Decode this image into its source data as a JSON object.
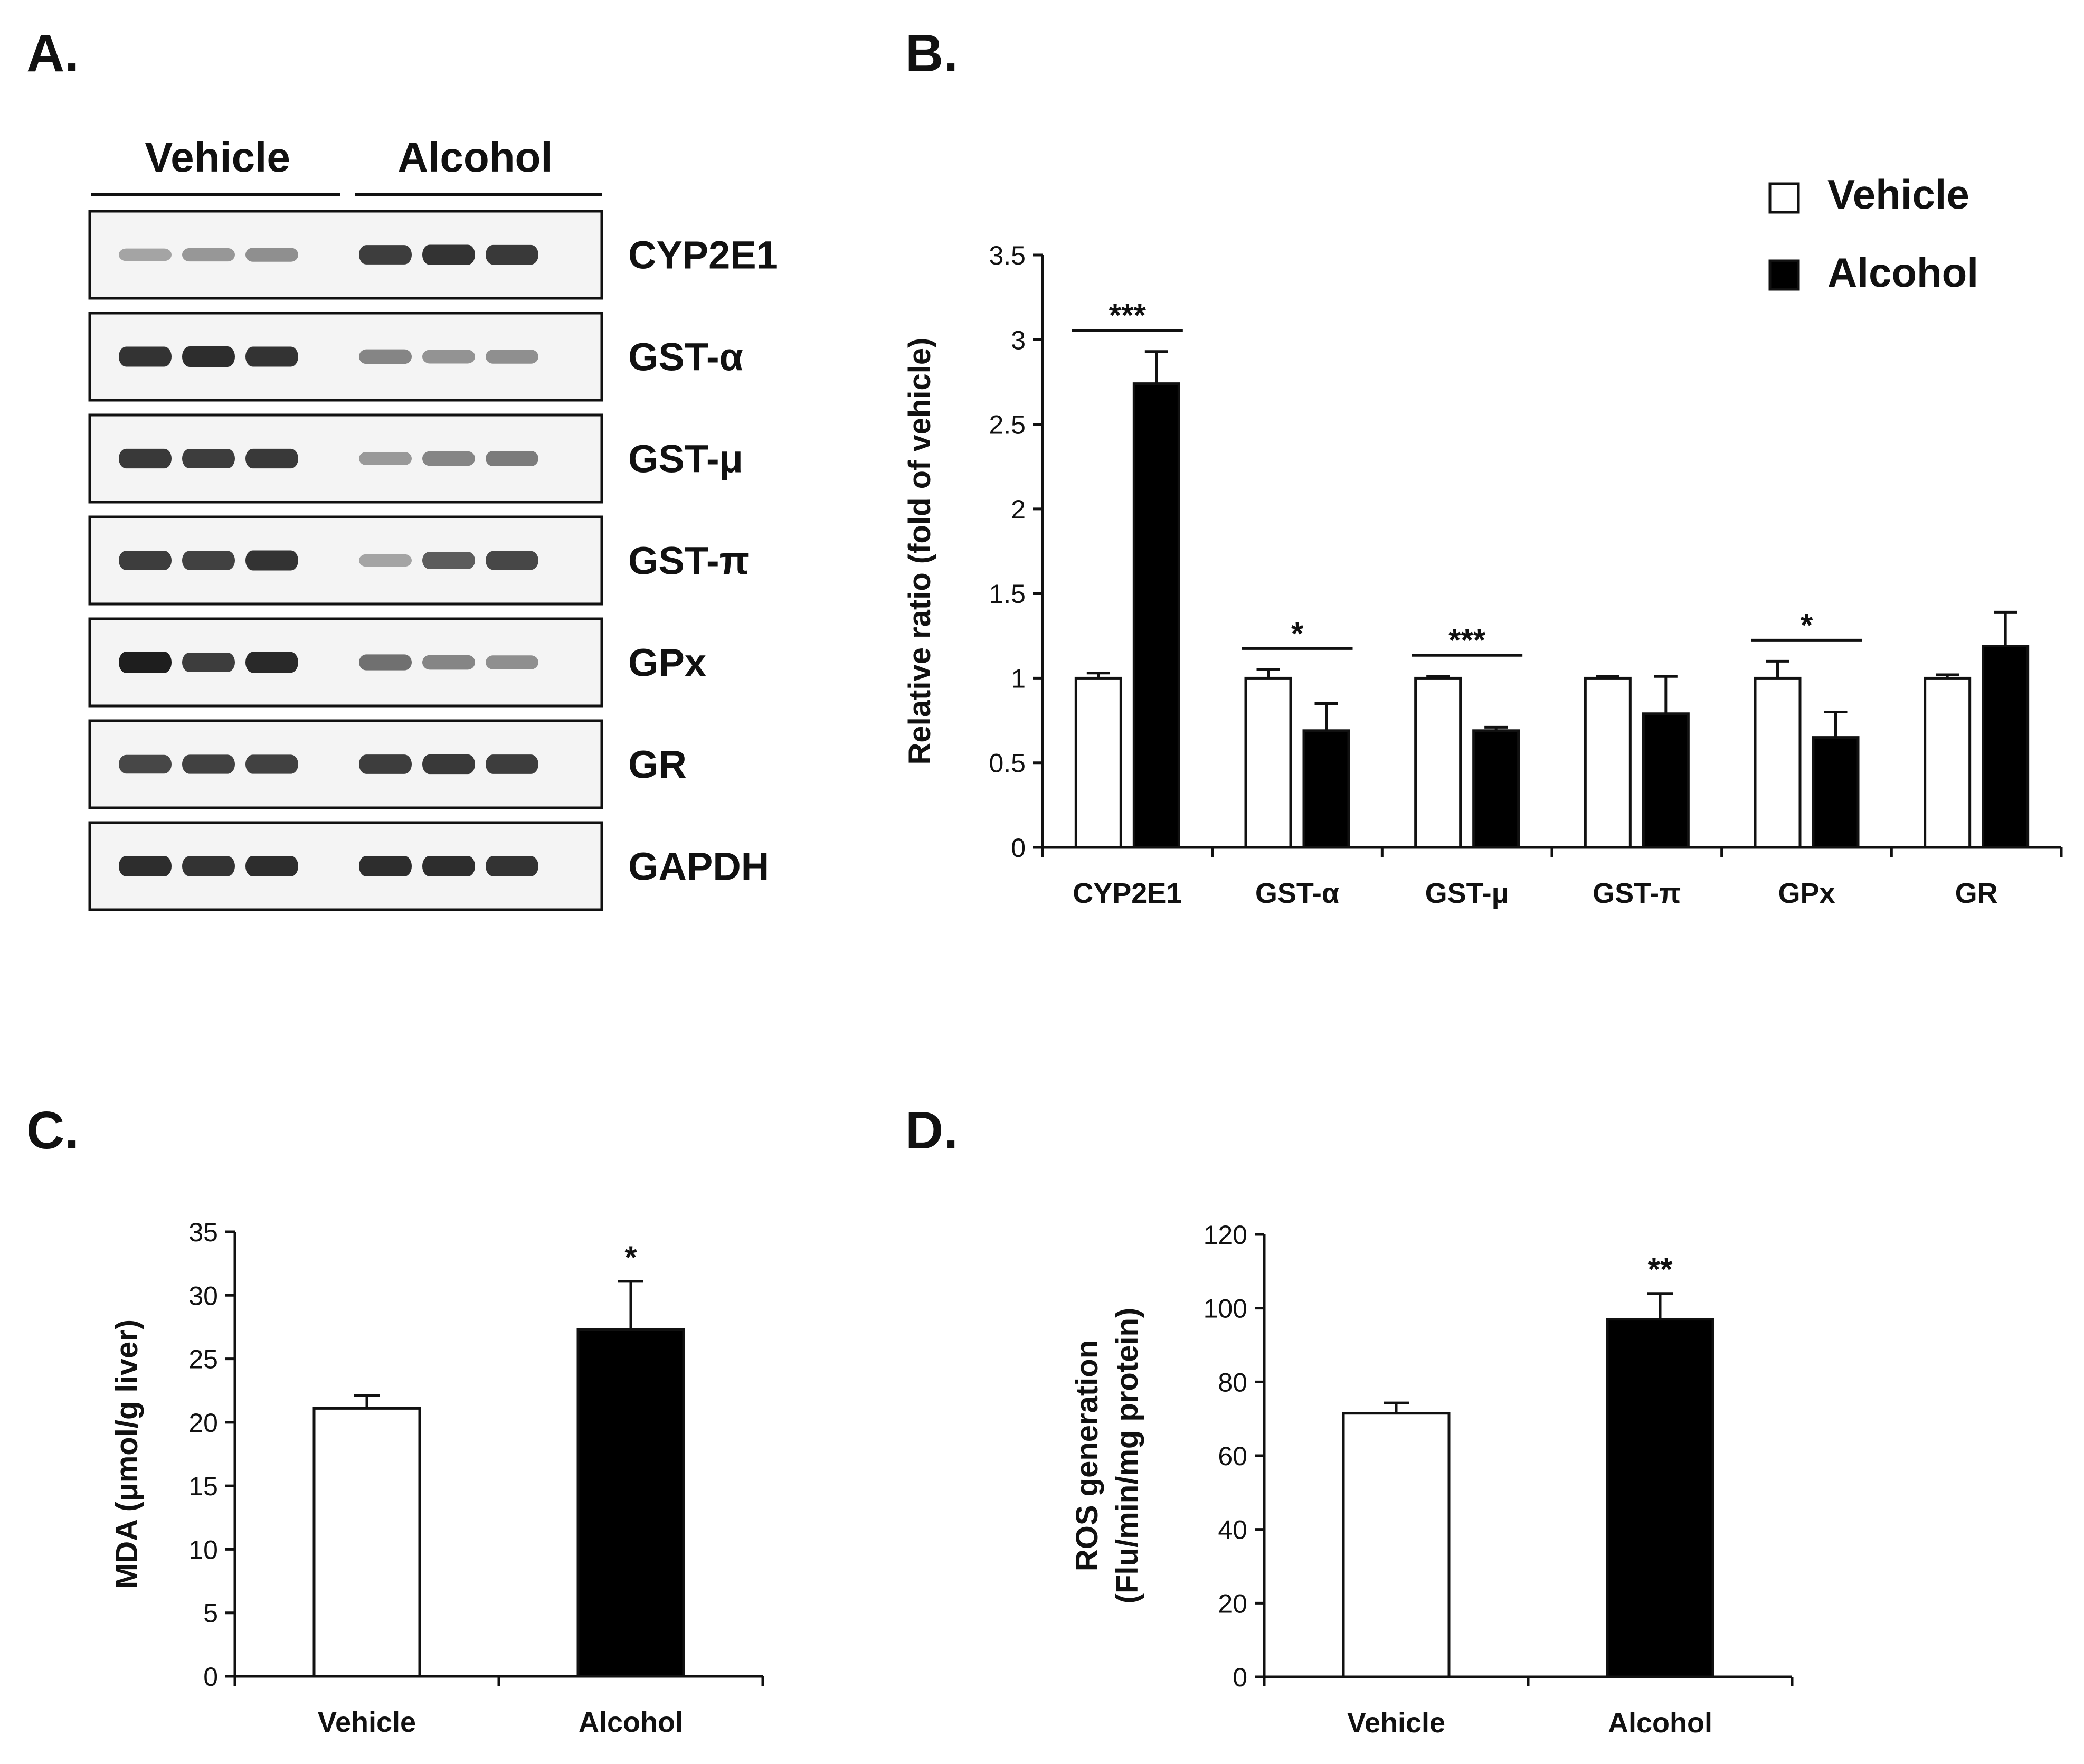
{
  "panels": {
    "a": "A.",
    "b": "B.",
    "c": "C.",
    "d": "D."
  },
  "colors": {
    "vehicle": "#ffffff",
    "alcohol": "#000000",
    "axis": "#111111"
  },
  "blot": {
    "groups": [
      "Vehicle",
      "Alcohol"
    ],
    "proteins": [
      "CYP2E1",
      "GST-α",
      "GST-μ",
      "GST-π",
      "GPx",
      "GR",
      "GAPDH"
    ],
    "band_intensity": [
      [
        0.3,
        0.36,
        0.4,
        0.8,
        0.85,
        0.82
      ],
      [
        0.85,
        0.88,
        0.85,
        0.45,
        0.38,
        0.4
      ],
      [
        0.82,
        0.8,
        0.82,
        0.35,
        0.45,
        0.5
      ],
      [
        0.8,
        0.78,
        0.85,
        0.3,
        0.65,
        0.75
      ],
      [
        0.95,
        0.8,
        0.9,
        0.55,
        0.45,
        0.4
      ],
      [
        0.75,
        0.78,
        0.78,
        0.8,
        0.82,
        0.8
      ],
      [
        0.88,
        0.85,
        0.88,
        0.88,
        0.88,
        0.85
      ]
    ]
  },
  "chart_data": [
    {
      "id": "B",
      "type": "bar",
      "title": "",
      "xlabel": "",
      "ylabel": "Relative ratio  (fold of vehicle)",
      "categories": [
        "CYP2E1",
        "GST-α",
        "GST-μ",
        "GST-π",
        "GPx",
        "GR"
      ],
      "series": [
        {
          "name": "Vehicle",
          "values": [
            1.0,
            1.0,
            1.0,
            1.0,
            1.0,
            1.0
          ],
          "errors": [
            0.03,
            0.05,
            0.01,
            0.01,
            0.1,
            0.02
          ]
        },
        {
          "name": "Alcohol",
          "values": [
            2.74,
            0.69,
            0.69,
            0.79,
            0.65,
            1.19
          ],
          "errors": [
            0.19,
            0.16,
            0.02,
            0.22,
            0.15,
            0.2
          ]
        }
      ],
      "significance": [
        "***",
        "*",
        "***",
        "",
        "*",
        ""
      ],
      "ylim": [
        0,
        3.5
      ],
      "yticks": [
        "0",
        "0.5",
        "1",
        "1.5",
        "2",
        "2.5",
        "3",
        "3.5"
      ],
      "legend": [
        "Vehicle",
        "Alcohol"
      ]
    },
    {
      "id": "C",
      "type": "bar",
      "title": "",
      "xlabel": "",
      "ylabel": "MDA (μmol/g liver)",
      "categories": [
        "Vehicle",
        "Alcohol"
      ],
      "values": [
        21.1,
        27.3
      ],
      "errors": [
        1.0,
        3.8
      ],
      "significance": [
        "",
        "*"
      ],
      "ylim": [
        0,
        35
      ],
      "yticks": [
        "0",
        "5",
        "10",
        "15",
        "20",
        "25",
        "30",
        "35"
      ]
    },
    {
      "id": "D",
      "type": "bar",
      "title": "",
      "xlabel": "",
      "ylabel": "ROS generation",
      "ylabel2": "(Flu/min/mg protein)",
      "categories": [
        "Vehicle",
        "Alcohol"
      ],
      "values": [
        71.5,
        97
      ],
      "errors": [
        2.8,
        7.0
      ],
      "significance": [
        "",
        "**"
      ],
      "ylim": [
        0,
        120
      ],
      "yticks": [
        "0",
        "20",
        "40",
        "60",
        "80",
        "100",
        "120"
      ]
    }
  ]
}
